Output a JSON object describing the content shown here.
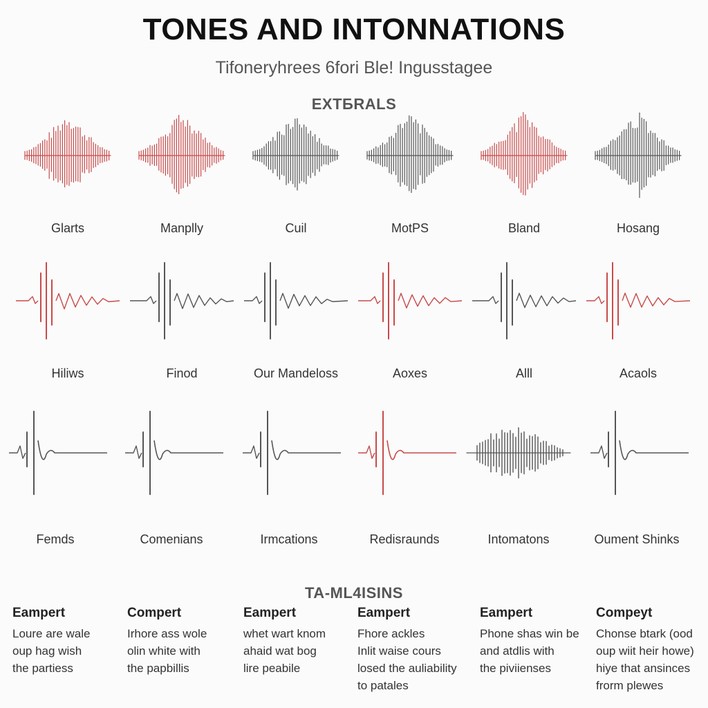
{
  "header": {
    "title": "TONES AND INTONNATIONS",
    "subtitle": "Tifoneryhrees 6fori Ble! Ingusstagee"
  },
  "sections": {
    "top_label": "EXTБRALS",
    "bottom_label": "TA-ML4ISINS"
  },
  "rows": [
    {
      "style": "symmetric",
      "items": [
        {
          "label": "Glarts",
          "color": "#c84a4a"
        },
        {
          "label": "Manplly",
          "color": "#c84a4a"
        },
        {
          "label": "Cuil",
          "color": "#555555"
        },
        {
          "label": "MotPS",
          "color": "#555555"
        },
        {
          "label": "Bland",
          "color": "#c84a4a"
        },
        {
          "label": "Hosang",
          "color": "#555555"
        }
      ]
    },
    {
      "style": "spike",
      "items": [
        {
          "label": "Hiliws",
          "color": "#c84a4a"
        },
        {
          "label": "Finod",
          "color": "#555555"
        },
        {
          "label": "Our Mandeloss",
          "color": "#555555"
        },
        {
          "label": "Aoxes",
          "color": "#c84a4a"
        },
        {
          "label": "Alll",
          "color": "#555555"
        },
        {
          "label": "Acaols",
          "color": "#c84a4a"
        }
      ]
    },
    {
      "style": "decay",
      "items": [
        {
          "label": "Femds",
          "color": "#555555"
        },
        {
          "label": "Comenians",
          "color": "#555555"
        },
        {
          "label": "Irmcations",
          "color": "#555555"
        },
        {
          "label": "Redisraunds",
          "color": "#c84a4a"
        },
        {
          "label": "Intomatons",
          "color": "#555555"
        },
        {
          "label": "Oument Shinks",
          "color": "#555555"
        }
      ]
    }
  ],
  "examples": [
    {
      "head": "Eampert",
      "lines": [
        "Loure are wale",
        "oup hag wish",
        "the partiess"
      ]
    },
    {
      "head": "Compert",
      "lines": [
        "Irhore ass wole",
        "olin white with",
        "the papbillis"
      ]
    },
    {
      "head": "Eampert",
      "lines": [
        "whet wart knom",
        "ahaid wat bog",
        "lire peabile"
      ]
    },
    {
      "head": "Eampert",
      "lines": [
        "Fhore ackles",
        "Inlit waise cours",
        "losed the auliability",
        "to patales"
      ]
    },
    {
      "head": "Eampert",
      "lines": [
        "Phone shas win be",
        "and atdlis with",
        "the piviienses"
      ]
    },
    {
      "head": "Compeyt",
      "lines": [
        "Chonse btark (ood",
        "oup wiit heir howe)",
        "hiye that ansinces",
        "frorm plewes"
      ]
    }
  ]
}
